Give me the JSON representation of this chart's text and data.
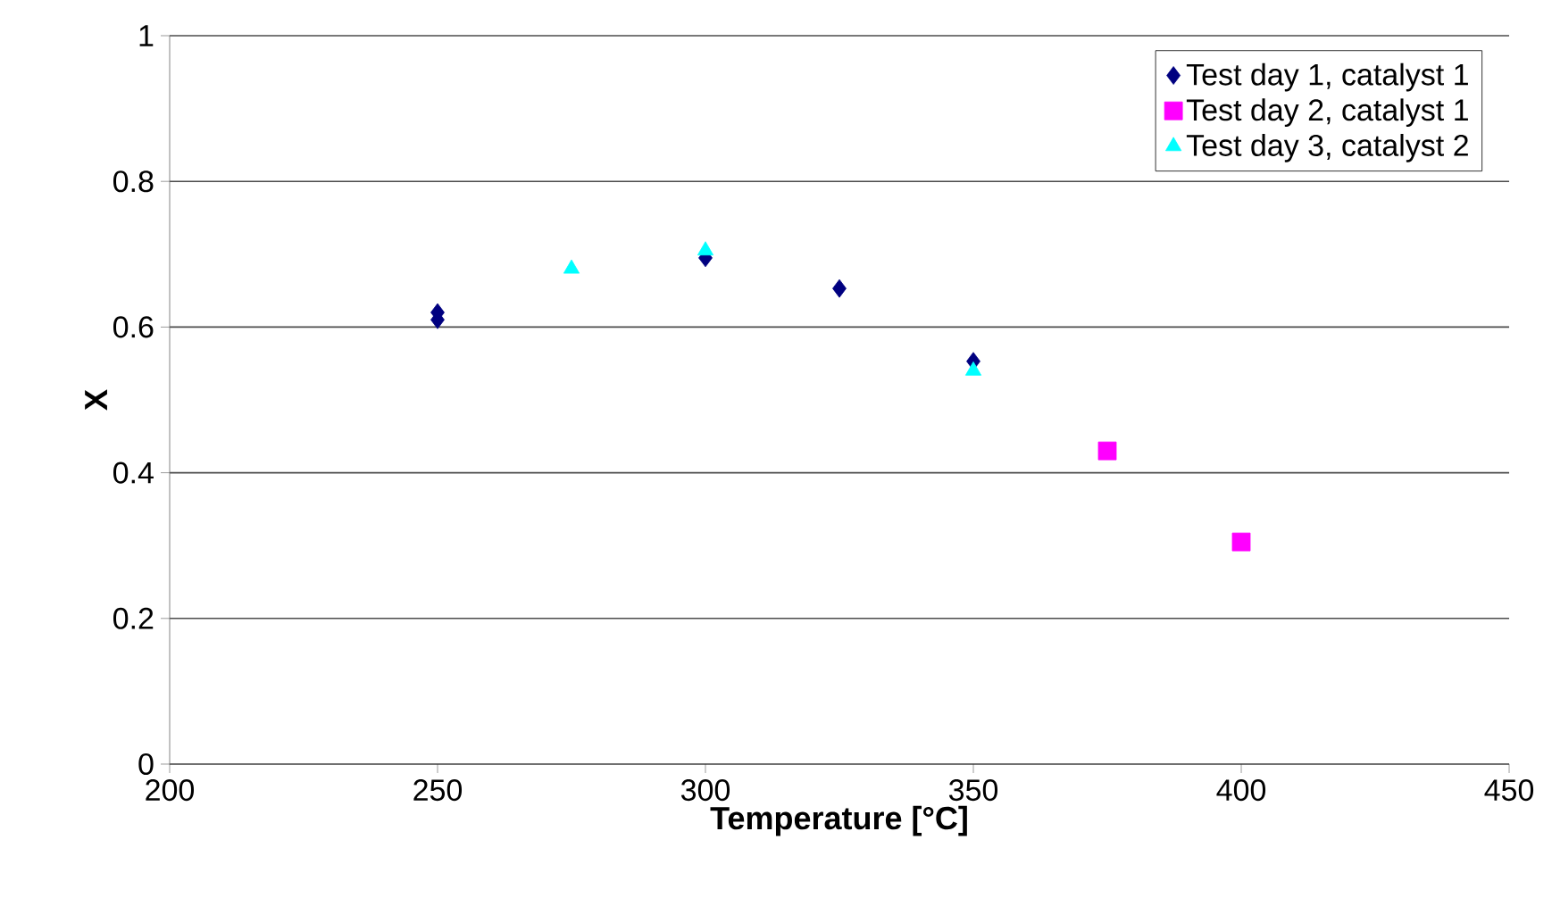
{
  "chart_data": {
    "type": "scatter",
    "xlabel": "Temperature [°C]",
    "ylabel": "X",
    "xlim": [
      200,
      450
    ],
    "ylim": [
      0,
      1
    ],
    "xticks": [
      200,
      250,
      300,
      350,
      400,
      450
    ],
    "yticks": [
      0,
      0.2,
      0.4,
      0.6,
      0.8,
      1
    ],
    "grid": "y",
    "legend": "top right",
    "series": [
      {
        "name": "Test day 1, catalyst 1",
        "color": "#000080",
        "marker": "diamond",
        "x": [
          250,
          250,
          300,
          325,
          350
        ],
        "values": [
          0.62,
          0.61,
          0.695,
          0.653,
          0.553
        ]
      },
      {
        "name": "Test day 2, catalyst 1",
        "color": "#ff00ff",
        "marker": "square",
        "x": [
          375,
          400
        ],
        "values": [
          0.43,
          0.305
        ]
      },
      {
        "name": "Test day 3, catalyst 2",
        "color": "#00ffff",
        "marker": "triangle",
        "x": [
          275,
          300,
          350
        ],
        "values": [
          0.68,
          0.705,
          0.54
        ]
      }
    ]
  }
}
